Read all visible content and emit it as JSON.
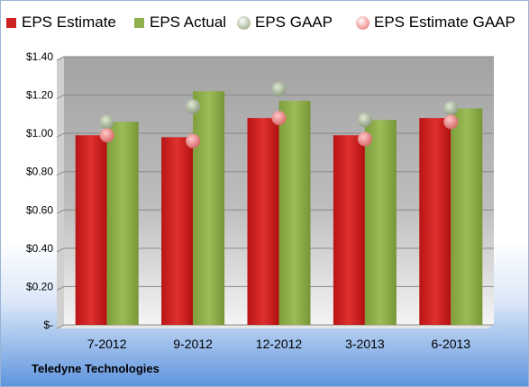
{
  "chart_data": {
    "type": "bar",
    "categories": [
      "7-2012",
      "9-2012",
      "12-2012",
      "3-2013",
      "6-2013"
    ],
    "series": [
      {
        "name": "EPS Estimate",
        "kind": "bar",
        "color": "#cc2222",
        "values": [
          0.99,
          0.98,
          1.08,
          0.99,
          1.08
        ]
      },
      {
        "name": "EPS Actual",
        "kind": "bar",
        "color": "#8fb04a",
        "values": [
          1.06,
          1.22,
          1.17,
          1.07,
          1.13
        ]
      },
      {
        "name": "EPS GAAP",
        "kind": "marker",
        "color": "#a9b99a",
        "values": [
          1.06,
          1.14,
          1.23,
          1.07,
          1.13
        ]
      },
      {
        "name": "EPS Estimate GAAP",
        "kind": "marker",
        "color": "#f09090",
        "values": [
          0.99,
          0.96,
          1.08,
          0.97,
          1.06
        ]
      }
    ],
    "ylim": [
      0,
      1.4
    ],
    "yticks": [
      0,
      0.2,
      0.4,
      0.6,
      0.8,
      1.0,
      1.2,
      1.4
    ],
    "ytick_labels": [
      "$-",
      "$0.20",
      "$0.40",
      "$0.60",
      "$0.80",
      "$1.00",
      "$1.20",
      "$1.40"
    ],
    "grid": true,
    "legend_position": "top"
  },
  "footer": {
    "company": "Teledyne Technologies"
  }
}
